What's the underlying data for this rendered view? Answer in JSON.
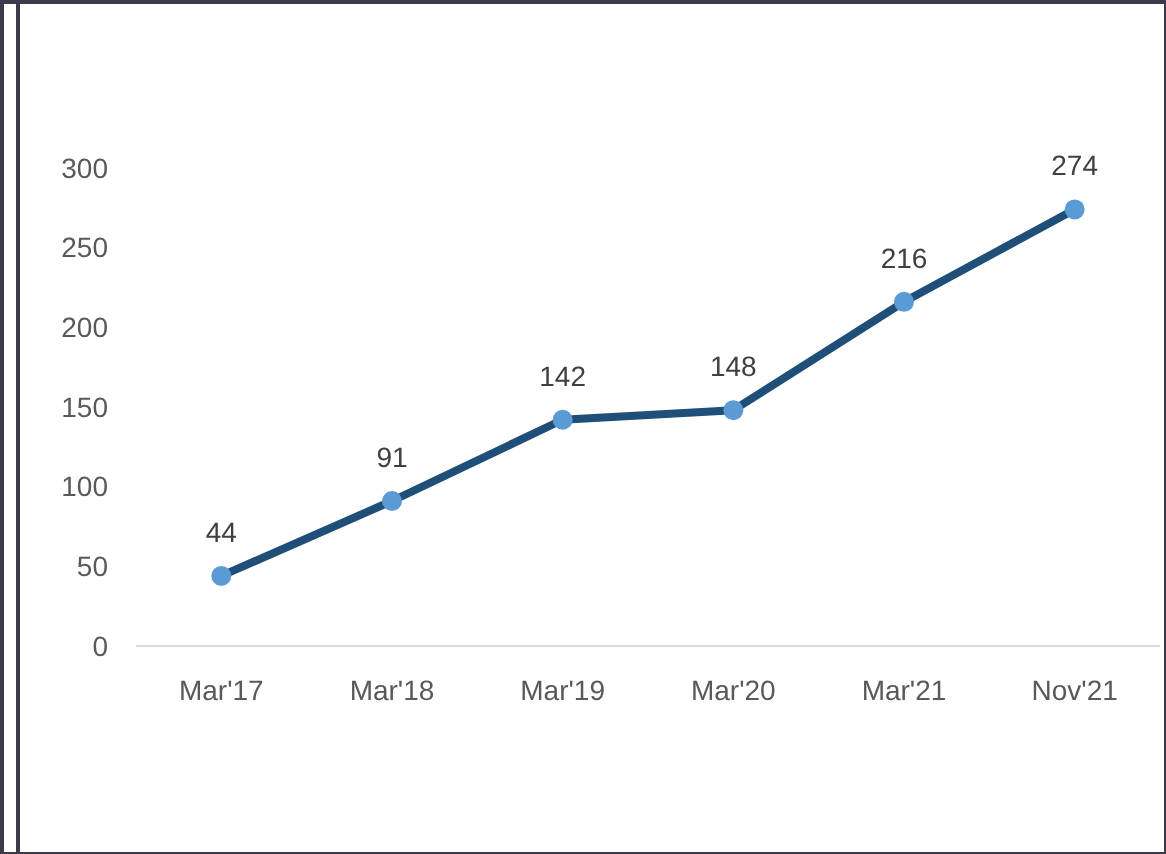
{
  "chart_data": {
    "type": "line",
    "categories": [
      "Mar'17",
      "Mar'18",
      "Mar'19",
      "Mar'20",
      "Mar'21",
      "Nov'21"
    ],
    "series": [
      {
        "color": "#1f4e79",
        "values": [
          44,
          91,
          142,
          148,
          216,
          274
        ]
      }
    ],
    "marker": "circle",
    "line_style": "solid",
    "data_labels": true,
    "grid": false,
    "ylim": [
      0,
      300
    ],
    "yticks": [
      0,
      50,
      100,
      150,
      200,
      250,
      300
    ]
  }
}
